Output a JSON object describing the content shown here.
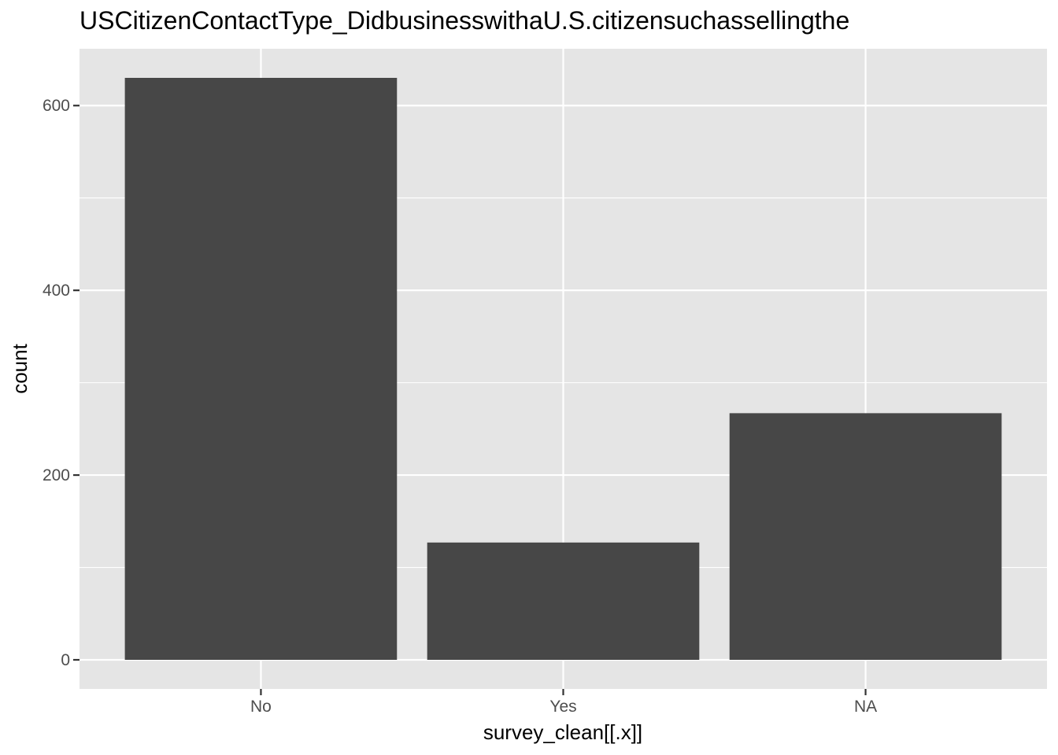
{
  "chart_data": {
    "type": "bar",
    "title": "USCitizenContactType_DidbusinesswithaU.S.citizensuchassellingthe",
    "xlabel": "survey_clean[[.x]]",
    "ylabel": "count",
    "categories": [
      "No",
      "Yes",
      "NA"
    ],
    "values": [
      630,
      127,
      267
    ],
    "ylim": [
      -31.5,
      661.5
    ],
    "yticks": [
      0,
      200,
      400,
      600
    ],
    "ytick_labels": [
      "0",
      "200",
      "400",
      "600"
    ],
    "grid": true,
    "legend": "none",
    "colors": {
      "bar": "#474747",
      "panel": "#e5e5e5",
      "grid": "#ffffff",
      "tick_text": "#4d4d4d"
    }
  }
}
